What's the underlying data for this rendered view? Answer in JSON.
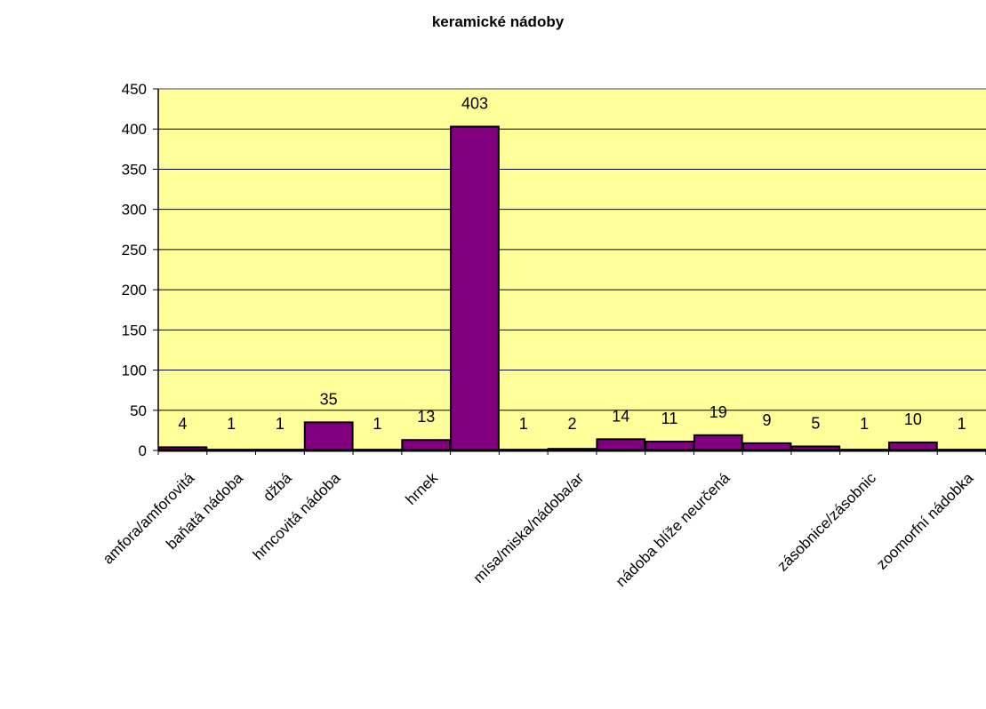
{
  "chart_data": {
    "type": "bar",
    "title": "keramické nádoby",
    "xlabel": "",
    "ylabel": "",
    "ylim": [
      0,
      450
    ],
    "yticks": [
      0,
      50,
      100,
      150,
      200,
      250,
      300,
      350,
      400,
      450
    ],
    "grid": true,
    "legend": "none",
    "colors": {
      "plot_background": "#ffff99",
      "bar_fill": "#800080",
      "bar_stroke": "#000000",
      "gridline": "#000000"
    },
    "categories": [
      "amfora/amforovitá",
      "",
      "baňatá nádoba",
      "",
      "džbá",
      "",
      "hrncovitá nádoba",
      "",
      "hrnek",
      "",
      "mísa/miska/nádoba/ar",
      "",
      "nádoba blíže neurčená",
      "",
      "zásobnice/zásobnic",
      "",
      "zoomorfní nádobka"
    ],
    "values": [
      4,
      1,
      1,
      35,
      1,
      13,
      403,
      1,
      2,
      14,
      11,
      19,
      9,
      5,
      1,
      10,
      1
    ],
    "x_tick_labels": [
      {
        "text": "amfora/amforovitá",
        "index": 0
      },
      {
        "text": "baňatá nádoba",
        "index": 1
      },
      {
        "text": "džbá",
        "index": 2
      },
      {
        "text": "hrncovitá nádoba",
        "index": 3
      },
      {
        "text": "hrnek",
        "index": 5
      },
      {
        "text": "mísa/miska/nádoba/ar",
        "index": 8
      },
      {
        "text": "nádoba blíže neurčená",
        "index": 11
      },
      {
        "text": "zásobnice/zásobnic",
        "index": 14
      },
      {
        "text": "zoomorfní nádobka",
        "index": 16
      }
    ]
  }
}
